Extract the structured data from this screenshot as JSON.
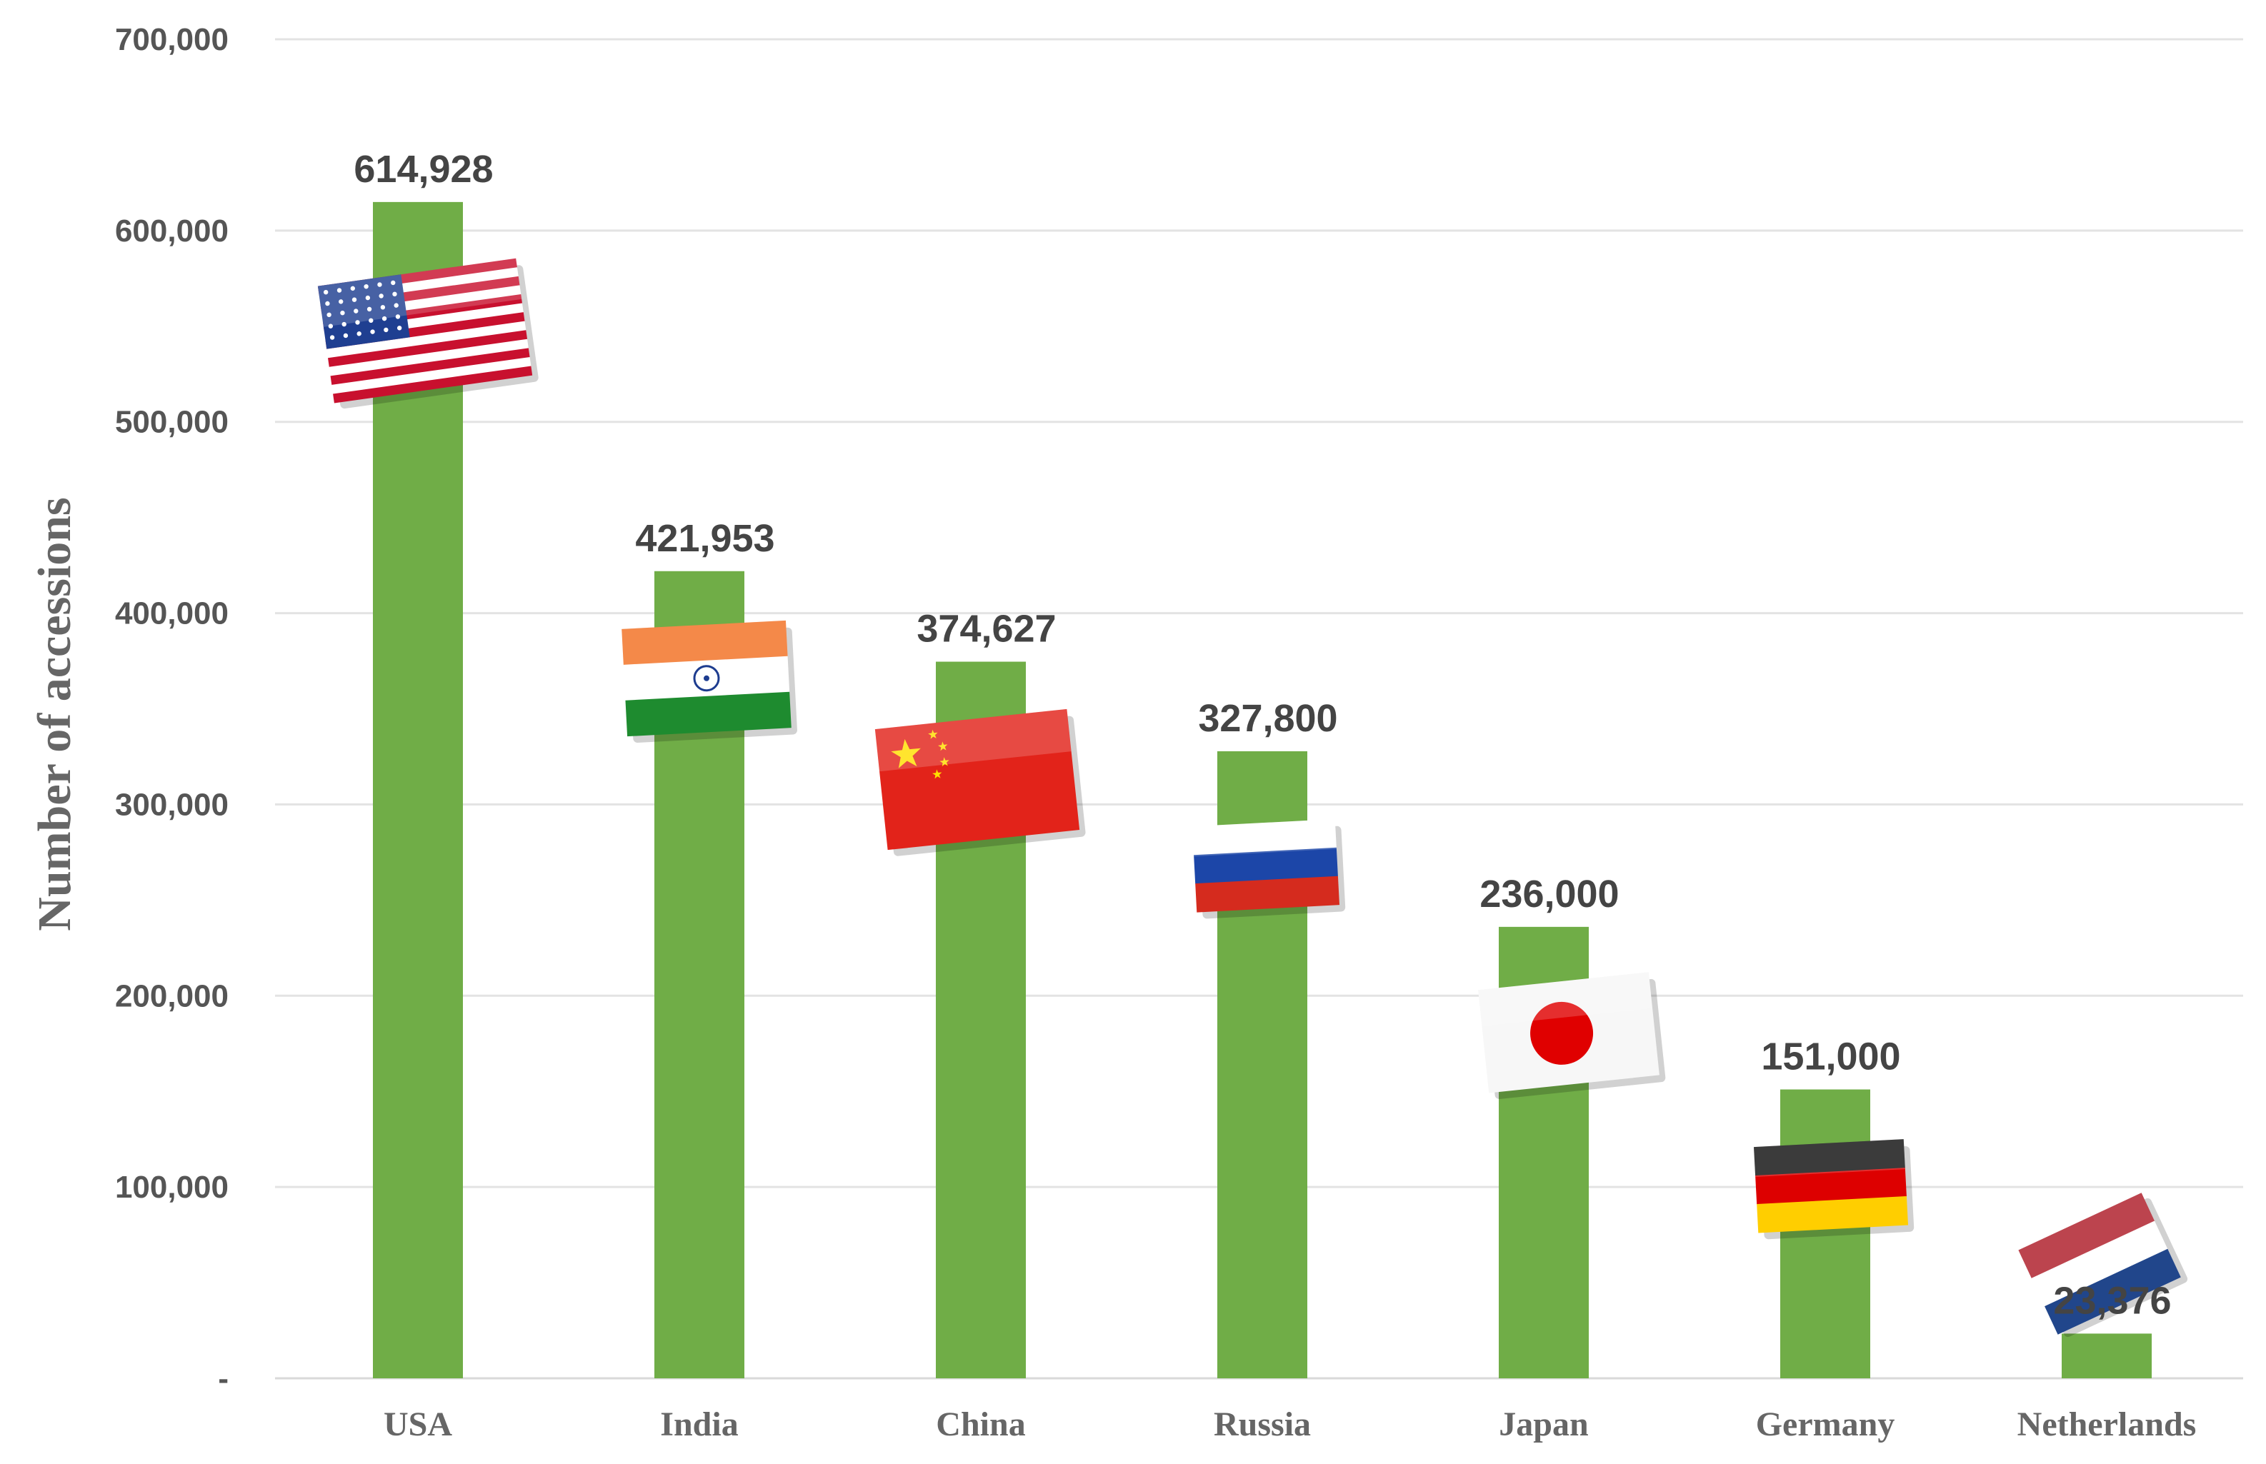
{
  "chart_data": {
    "type": "bar",
    "categories": [
      "USA",
      "India",
      "China",
      "Russia",
      "Japan",
      "Germany",
      "Netherlands"
    ],
    "values": [
      614928,
      421953,
      374627,
      327800,
      236000,
      151000,
      23376
    ],
    "value_labels": [
      "614,928",
      "421,953",
      "374,627",
      "327,800",
      "236,000",
      "151,000",
      "23,376"
    ],
    "ylabel": "Number of accessions",
    "ylim": [
      0,
      700000
    ],
    "yticks": [
      0,
      100000,
      200000,
      300000,
      400000,
      500000,
      600000,
      700000
    ],
    "ytick_labels": [
      "-",
      "100,000",
      "200,000",
      "300,000",
      "400,000",
      "500,000",
      "600,000",
      "700,000"
    ],
    "grid": true,
    "bar_color": "#70ad47",
    "flag_icons": [
      "usa-flag-icon",
      "india-flag-icon",
      "china-flag-icon",
      "russia-flag-icon",
      "japan-flag-icon",
      "germany-flag-icon",
      "netherlands-flag-icon"
    ]
  }
}
